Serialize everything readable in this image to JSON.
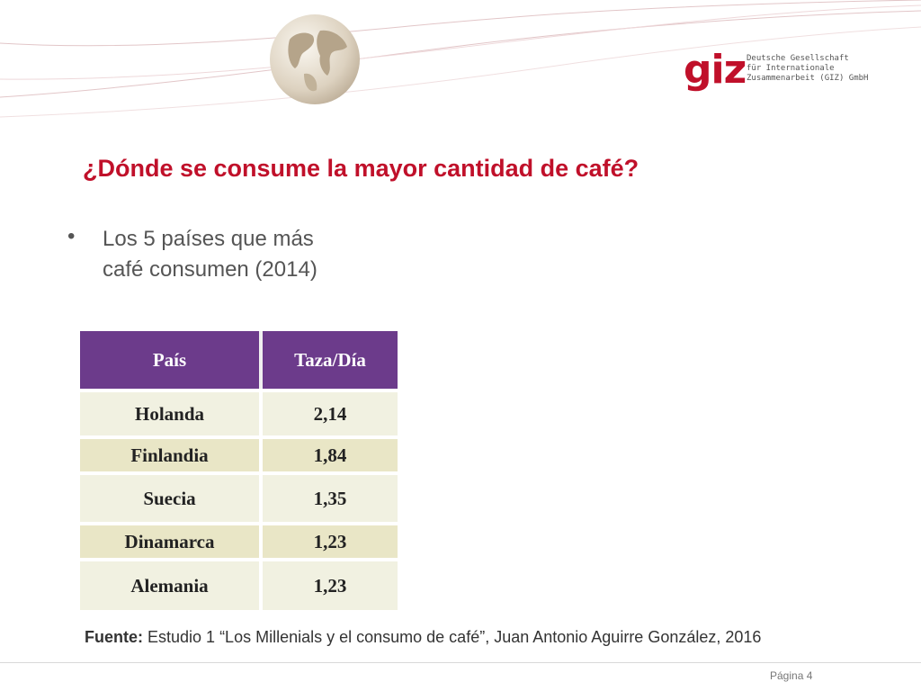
{
  "header": {
    "logo": {
      "wordmark": "giz",
      "lines": [
        "Deutsche Gesellschaft",
        "für Internationale",
        "Zusammenarbeit (GIZ) GmbH"
      ]
    }
  },
  "slide": {
    "title": "¿Dónde se consume la mayor cantidad de café?",
    "bullet": "Los 5 países que más café consumen (2014)",
    "table": {
      "headers": [
        "País",
        "Taza/Día"
      ],
      "rows": [
        {
          "country": "Holanda",
          "value": "2,14"
        },
        {
          "country": "Finlandia",
          "value": "1,84"
        },
        {
          "country": "Suecia",
          "value": "1,35"
        },
        {
          "country": "Dinamarca",
          "value": "1,23"
        },
        {
          "country": "Alemania",
          "value": "1,23"
        }
      ]
    },
    "source_label": "Fuente:",
    "source_text": "Estudio 1 “Los Millenials y el consumo de café”, Juan Antonio Aguirre González, 2016"
  },
  "footer": {
    "page_label": "Página 4"
  },
  "colors": {
    "accent": "#c0102a",
    "table_header": "#6c3b8b",
    "row_light": "#f1f1e1",
    "row_dark": "#e9e6c6"
  }
}
